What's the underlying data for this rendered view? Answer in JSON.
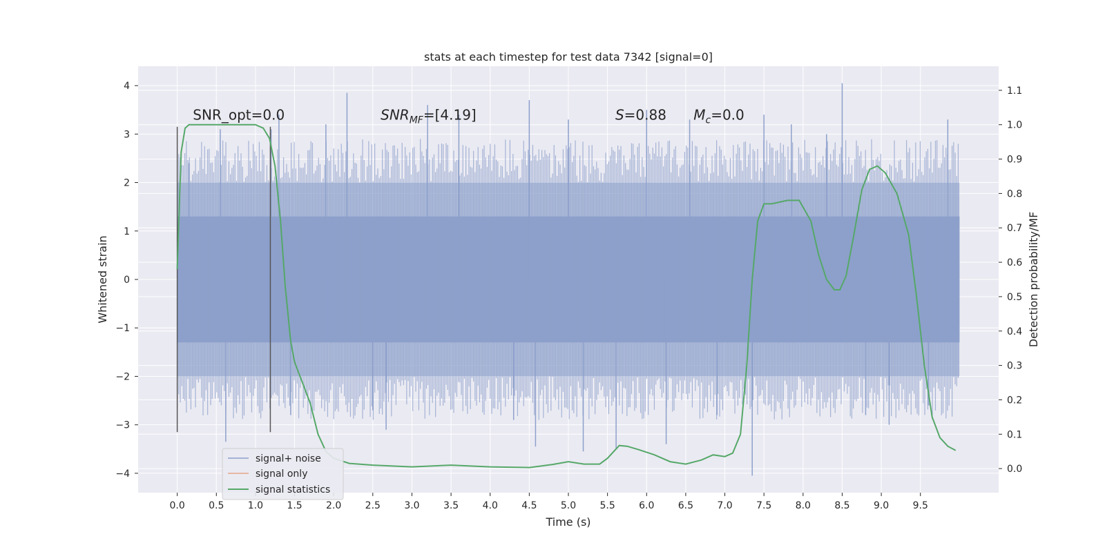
{
  "chart_data": {
    "type": "line",
    "title": "stats at each timestep for test data 7342 [signal=0]",
    "xlabel": "Time (s)",
    "ylabel": "Whitened strain",
    "y2label": "Detection probability/MF",
    "xlim": [
      -0.5,
      10.5
    ],
    "ylim": [
      -4.4,
      4.4
    ],
    "y2lim": [
      -0.07,
      1.17
    ],
    "x_ticks": [
      0.0,
      0.5,
      1.0,
      1.5,
      2.0,
      2.5,
      3.0,
      3.5,
      4.0,
      4.5,
      5.0,
      5.5,
      6.0,
      6.5,
      7.0,
      7.5,
      8.0,
      8.5,
      9.0,
      9.5
    ],
    "x_tick_labels": [
      "0.0",
      "0.5",
      "1.0",
      "1.5",
      "2.0",
      "2.5",
      "3.0",
      "3.5",
      "4.0",
      "4.5",
      "5.0",
      "5.5",
      "6.0",
      "6.5",
      "7.0",
      "7.5",
      "8.0",
      "8.5",
      "9.0",
      "9.5"
    ],
    "y_ticks": [
      -4,
      -3,
      -2,
      -1,
      0,
      1,
      2,
      3,
      4
    ],
    "y_tick_labels": [
      "−4",
      "−3",
      "−2",
      "−1",
      "0",
      "1",
      "2",
      "3",
      "4"
    ],
    "y2_ticks": [
      0.0,
      0.1,
      0.2,
      0.3,
      0.4,
      0.5,
      0.6,
      0.7,
      0.8,
      0.9,
      1.0,
      1.1
    ],
    "y2_tick_labels": [
      "0.0",
      "0.1",
      "0.2",
      "0.3",
      "0.4",
      "0.5",
      "0.6",
      "0.7",
      "0.8",
      "0.9",
      "1.0",
      "1.1"
    ],
    "grid": true,
    "legend_position": "lower-left",
    "legend": [
      {
        "label": "signal+ noise",
        "color": "#8da0cb"
      },
      {
        "label": "signal only",
        "color": "#e8a48a"
      },
      {
        "label": "signal statistics",
        "color": "#55a868"
      }
    ],
    "annotations": [
      {
        "text": "SNR_opt=0.0",
        "x": 0.2,
        "y": 3.3
      },
      {
        "text": "SNR_MF=[4.19]",
        "x": 2.6,
        "y": 3.3
      },
      {
        "text": "S=0.88",
        "x": 5.6,
        "y": 3.3
      },
      {
        "text": "M_c=0.0",
        "x": 6.6,
        "y": 3.3
      }
    ],
    "vlines": [
      {
        "x": 0.0,
        "ymin": -3.15,
        "ymax": 3.15
      },
      {
        "x": 1.19,
        "ymin": -3.15,
        "ymax": 3.15
      }
    ],
    "noise_series": {
      "name": "signal+ noise",
      "color": "#8da0cb",
      "x_start": 0.0,
      "x_end": 10.0,
      "core_band": [
        -1.3,
        1.3
      ],
      "envelope_band": [
        -2.0,
        2.0
      ],
      "spikes": [
        [
          0.15,
          2.4
        ],
        [
          0.55,
          3.1
        ],
        [
          0.62,
          -3.35
        ],
        [
          1.2,
          3.1
        ],
        [
          1.3,
          3.4
        ],
        [
          1.45,
          -2.8
        ],
        [
          1.9,
          3.2
        ],
        [
          2.17,
          3.85
        ],
        [
          2.5,
          -2.7
        ],
        [
          2.67,
          -3.1
        ],
        [
          3.2,
          3.6
        ],
        [
          3.6,
          3.4
        ],
        [
          4.3,
          -2.9
        ],
        [
          4.5,
          3.7
        ],
        [
          4.58,
          -3.45
        ],
        [
          5.0,
          3.3
        ],
        [
          5.19,
          -3.55
        ],
        [
          5.61,
          -3.5
        ],
        [
          6.0,
          3.5
        ],
        [
          6.25,
          -3.4
        ],
        [
          6.55,
          3.3
        ],
        [
          6.9,
          -2.8
        ],
        [
          7.35,
          -4.05
        ],
        [
          7.5,
          3.4
        ],
        [
          7.85,
          3.2
        ],
        [
          8.3,
          3.0
        ],
        [
          8.5,
          4.05
        ],
        [
          8.8,
          -2.8
        ],
        [
          9.1,
          -3.0
        ],
        [
          9.6,
          -2.6
        ],
        [
          9.85,
          3.3
        ]
      ]
    },
    "series": [
      {
        "name": "signal statistics",
        "color": "#55a868",
        "axis": "right",
        "x": [
          0.0,
          0.05,
          0.1,
          0.15,
          0.2,
          0.3,
          0.5,
          0.7,
          0.9,
          1.0,
          1.1,
          1.18,
          1.25,
          1.32,
          1.38,
          1.45,
          1.5,
          1.55,
          1.6,
          1.7,
          1.8,
          1.9,
          2.0,
          2.2,
          2.5,
          3.0,
          3.5,
          4.0,
          4.5,
          4.8,
          5.0,
          5.2,
          5.4,
          5.5,
          5.65,
          5.75,
          5.9,
          6.1,
          6.3,
          6.5,
          6.7,
          6.85,
          7.0,
          7.1,
          7.2,
          7.28,
          7.35,
          7.42,
          7.5,
          7.6,
          7.8,
          7.95,
          8.1,
          8.2,
          8.3,
          8.4,
          8.47,
          8.55,
          8.65,
          8.75,
          8.85,
          8.95,
          9.05,
          9.2,
          9.35,
          9.45,
          9.55,
          9.65,
          9.75,
          9.85,
          9.95
        ],
        "y": [
          0.58,
          0.92,
          0.99,
          1.0,
          1.0,
          1.0,
          1.0,
          1.0,
          1.0,
          1.0,
          0.99,
          0.96,
          0.88,
          0.72,
          0.53,
          0.37,
          0.31,
          0.28,
          0.25,
          0.19,
          0.1,
          0.05,
          0.03,
          0.015,
          0.01,
          0.005,
          0.01,
          0.005,
          0.003,
          0.012,
          0.02,
          0.013,
          0.013,
          0.03,
          0.067,
          0.065,
          0.055,
          0.04,
          0.02,
          0.013,
          0.025,
          0.04,
          0.035,
          0.045,
          0.1,
          0.3,
          0.55,
          0.72,
          0.77,
          0.77,
          0.78,
          0.78,
          0.72,
          0.62,
          0.55,
          0.52,
          0.52,
          0.56,
          0.68,
          0.81,
          0.87,
          0.88,
          0.86,
          0.8,
          0.68,
          0.5,
          0.3,
          0.15,
          0.09,
          0.065,
          0.053
        ]
      }
    ]
  }
}
